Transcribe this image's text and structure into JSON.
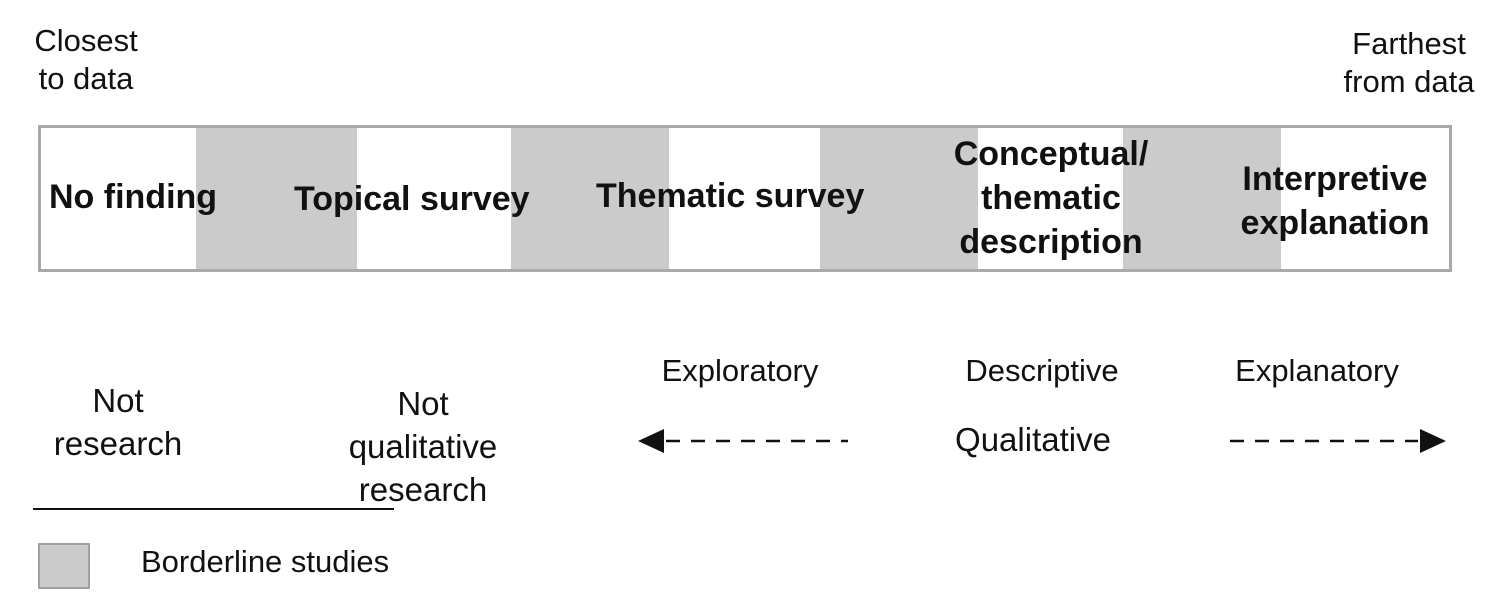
{
  "axis": {
    "left_label_line1": "Closest",
    "left_label_line2": "to data",
    "right_label_line1": "Farthest",
    "right_label_line2": "from data"
  },
  "continuum": {
    "categories": [
      {
        "line1": "No finding"
      },
      {
        "line1": "Topical survey"
      },
      {
        "line1": "Thematic survey"
      },
      {
        "line1": "Conceptual/",
        "line2": "thematic",
        "line3": "description"
      },
      {
        "line1": "Interpretive",
        "line2": "explanation"
      }
    ],
    "colors": {
      "borderline_fill": "#cbcbcb",
      "frame": "#a9a9a9"
    }
  },
  "classification": {
    "not_research_line1": "Not",
    "not_research_line2": "research",
    "not_qualitative_line1": "Not",
    "not_qualitative_line2": "qualitative",
    "not_qualitative_line3": "research",
    "exploratory": "Exploratory",
    "descriptive": "Descriptive",
    "explanatory": "Explanatory",
    "qualitative": "Qualitative"
  },
  "legend": {
    "borderline_label": "Borderline studies"
  }
}
